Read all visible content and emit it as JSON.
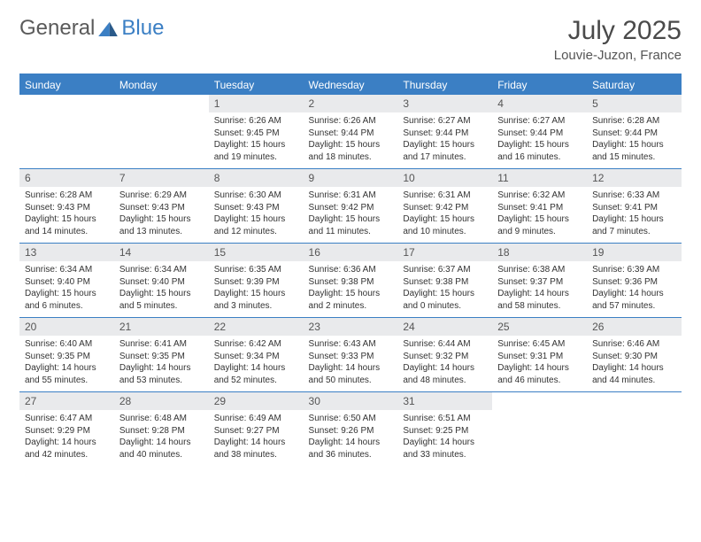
{
  "brand": {
    "part1": "General",
    "part2": "Blue"
  },
  "title": "July 2025",
  "location": "Louvie-Juzon, France",
  "colors": {
    "brand_blue": "#3b7fc4",
    "header_bg": "#3b7fc4",
    "header_text": "#ffffff",
    "daynum_bg": "#e9eaec",
    "text": "#333333",
    "page_bg": "#ffffff"
  },
  "day_headers": [
    "Sunday",
    "Monday",
    "Tuesday",
    "Wednesday",
    "Thursday",
    "Friday",
    "Saturday"
  ],
  "weeks": [
    [
      null,
      null,
      {
        "n": "1",
        "sr": "6:26 AM",
        "ss": "9:45 PM",
        "dl": "15 hours and 19 minutes."
      },
      {
        "n": "2",
        "sr": "6:26 AM",
        "ss": "9:44 PM",
        "dl": "15 hours and 18 minutes."
      },
      {
        "n": "3",
        "sr": "6:27 AM",
        "ss": "9:44 PM",
        "dl": "15 hours and 17 minutes."
      },
      {
        "n": "4",
        "sr": "6:27 AM",
        "ss": "9:44 PM",
        "dl": "15 hours and 16 minutes."
      },
      {
        "n": "5",
        "sr": "6:28 AM",
        "ss": "9:44 PM",
        "dl": "15 hours and 15 minutes."
      }
    ],
    [
      {
        "n": "6",
        "sr": "6:28 AM",
        "ss": "9:43 PM",
        "dl": "15 hours and 14 minutes."
      },
      {
        "n": "7",
        "sr": "6:29 AM",
        "ss": "9:43 PM",
        "dl": "15 hours and 13 minutes."
      },
      {
        "n": "8",
        "sr": "6:30 AM",
        "ss": "9:43 PM",
        "dl": "15 hours and 12 minutes."
      },
      {
        "n": "9",
        "sr": "6:31 AM",
        "ss": "9:42 PM",
        "dl": "15 hours and 11 minutes."
      },
      {
        "n": "10",
        "sr": "6:31 AM",
        "ss": "9:42 PM",
        "dl": "15 hours and 10 minutes."
      },
      {
        "n": "11",
        "sr": "6:32 AM",
        "ss": "9:41 PM",
        "dl": "15 hours and 9 minutes."
      },
      {
        "n": "12",
        "sr": "6:33 AM",
        "ss": "9:41 PM",
        "dl": "15 hours and 7 minutes."
      }
    ],
    [
      {
        "n": "13",
        "sr": "6:34 AM",
        "ss": "9:40 PM",
        "dl": "15 hours and 6 minutes."
      },
      {
        "n": "14",
        "sr": "6:34 AM",
        "ss": "9:40 PM",
        "dl": "15 hours and 5 minutes."
      },
      {
        "n": "15",
        "sr": "6:35 AM",
        "ss": "9:39 PM",
        "dl": "15 hours and 3 minutes."
      },
      {
        "n": "16",
        "sr": "6:36 AM",
        "ss": "9:38 PM",
        "dl": "15 hours and 2 minutes."
      },
      {
        "n": "17",
        "sr": "6:37 AM",
        "ss": "9:38 PM",
        "dl": "15 hours and 0 minutes."
      },
      {
        "n": "18",
        "sr": "6:38 AM",
        "ss": "9:37 PM",
        "dl": "14 hours and 58 minutes."
      },
      {
        "n": "19",
        "sr": "6:39 AM",
        "ss": "9:36 PM",
        "dl": "14 hours and 57 minutes."
      }
    ],
    [
      {
        "n": "20",
        "sr": "6:40 AM",
        "ss": "9:35 PM",
        "dl": "14 hours and 55 minutes."
      },
      {
        "n": "21",
        "sr": "6:41 AM",
        "ss": "9:35 PM",
        "dl": "14 hours and 53 minutes."
      },
      {
        "n": "22",
        "sr": "6:42 AM",
        "ss": "9:34 PM",
        "dl": "14 hours and 52 minutes."
      },
      {
        "n": "23",
        "sr": "6:43 AM",
        "ss": "9:33 PM",
        "dl": "14 hours and 50 minutes."
      },
      {
        "n": "24",
        "sr": "6:44 AM",
        "ss": "9:32 PM",
        "dl": "14 hours and 48 minutes."
      },
      {
        "n": "25",
        "sr": "6:45 AM",
        "ss": "9:31 PM",
        "dl": "14 hours and 46 minutes."
      },
      {
        "n": "26",
        "sr": "6:46 AM",
        "ss": "9:30 PM",
        "dl": "14 hours and 44 minutes."
      }
    ],
    [
      {
        "n": "27",
        "sr": "6:47 AM",
        "ss": "9:29 PM",
        "dl": "14 hours and 42 minutes."
      },
      {
        "n": "28",
        "sr": "6:48 AM",
        "ss": "9:28 PM",
        "dl": "14 hours and 40 minutes."
      },
      {
        "n": "29",
        "sr": "6:49 AM",
        "ss": "9:27 PM",
        "dl": "14 hours and 38 minutes."
      },
      {
        "n": "30",
        "sr": "6:50 AM",
        "ss": "9:26 PM",
        "dl": "14 hours and 36 minutes."
      },
      {
        "n": "31",
        "sr": "6:51 AM",
        "ss": "9:25 PM",
        "dl": "14 hours and 33 minutes."
      },
      null,
      null
    ]
  ],
  "labels": {
    "sunrise": "Sunrise:",
    "sunset": "Sunset:",
    "daylight": "Daylight:"
  }
}
